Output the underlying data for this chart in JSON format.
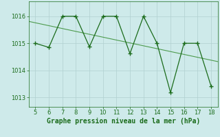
{
  "x": [
    5,
    6,
    7,
    8,
    9,
    10,
    11,
    12,
    13,
    14,
    15,
    16,
    17,
    18
  ],
  "y": [
    1015.0,
    1014.85,
    1016.0,
    1016.0,
    1014.87,
    1016.0,
    1016.0,
    1014.62,
    1016.0,
    1015.0,
    1013.18,
    1015.0,
    1015.0,
    1013.42
  ],
  "line_color": "#1a6b1a",
  "trend_color": "#4d9b4d",
  "bg_color": "#ceeaea",
  "grid_color": "#b0d0d0",
  "xlabel": "Graphe pression niveau de la mer (hPa)",
  "xlabel_color": "#1a6b1a",
  "ylim": [
    1012.65,
    1016.55
  ],
  "xlim": [
    4.5,
    18.5
  ],
  "yticks": [
    1013,
    1014,
    1015,
    1016
  ],
  "xticks": [
    5,
    6,
    7,
    8,
    9,
    10,
    11,
    12,
    13,
    14,
    15,
    16,
    17,
    18
  ],
  "tick_color": "#1a6b1a",
  "tick_fontsize": 6.0,
  "xlabel_fontsize": 7.0
}
